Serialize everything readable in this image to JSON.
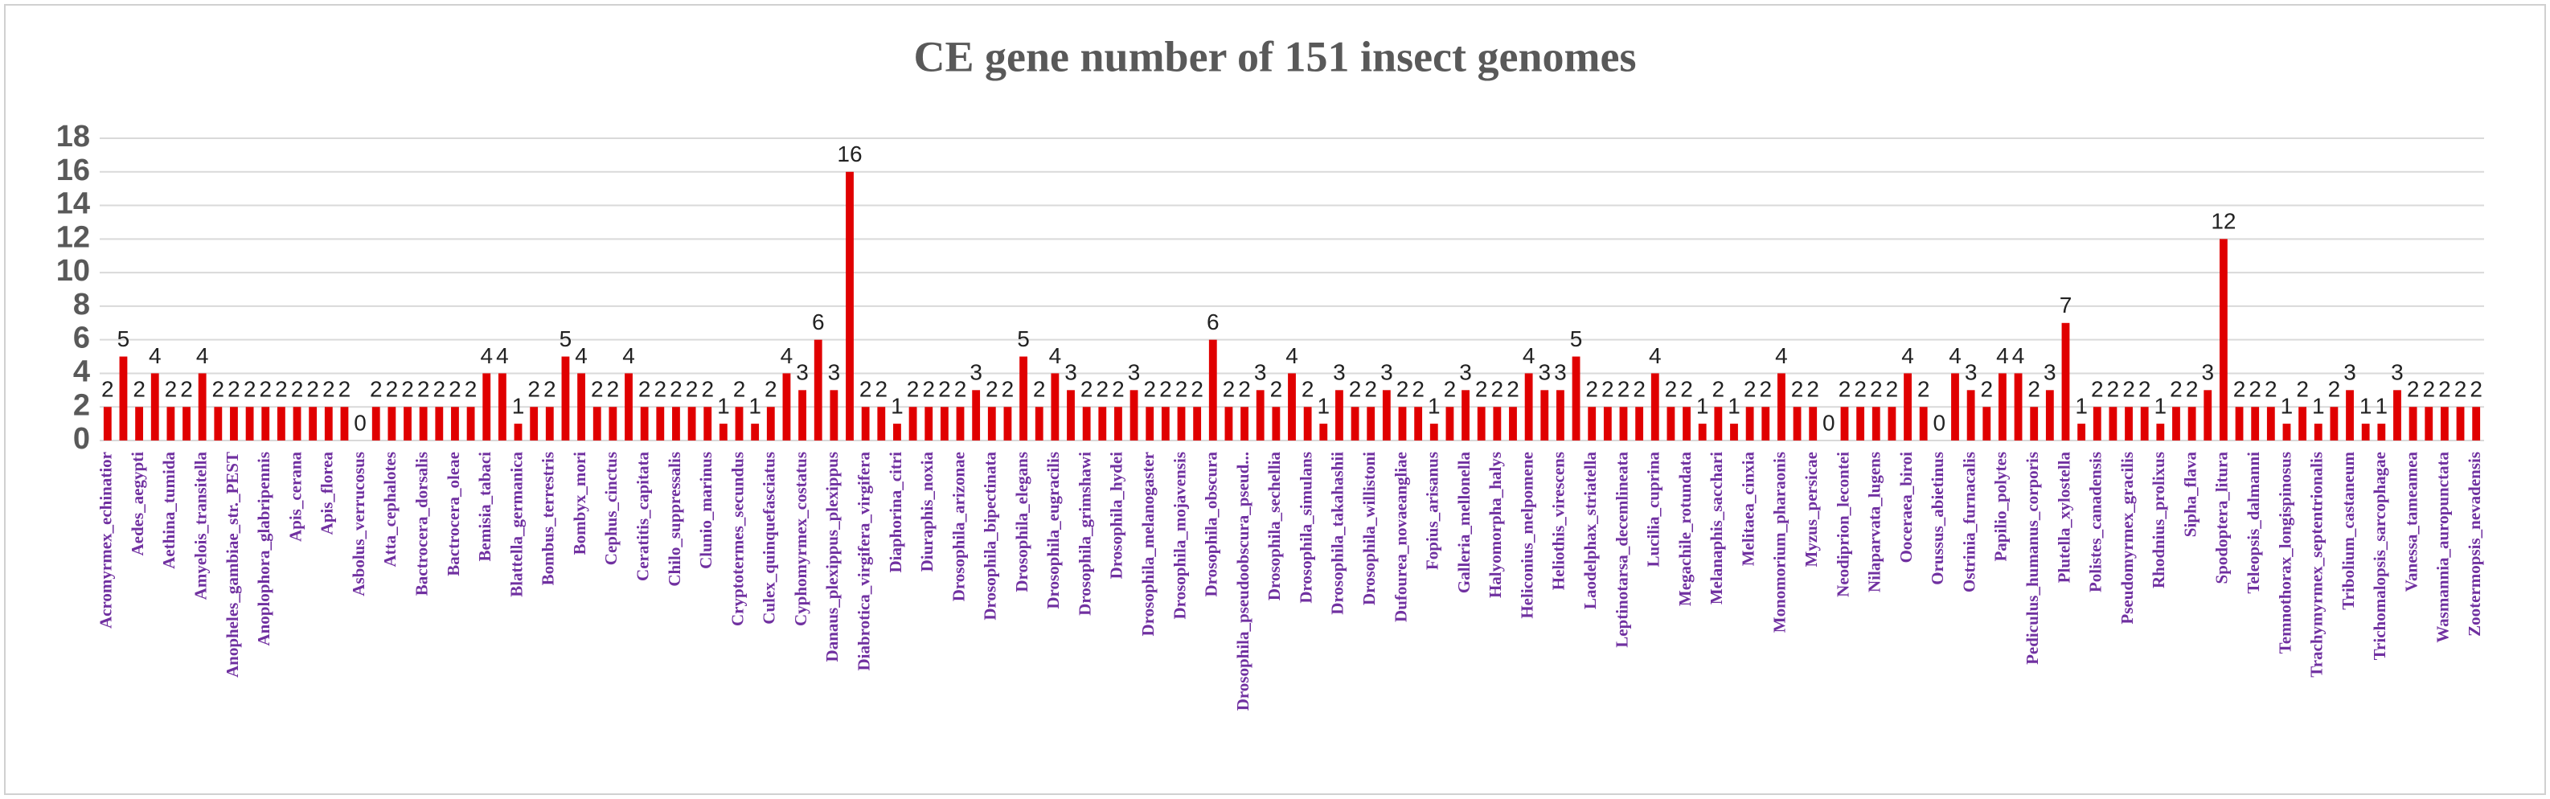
{
  "chart_data": {
    "type": "bar",
    "title": "CE gene number of 151 insect genomes",
    "categories": [
      "Acromyrmex_echinatior",
      null,
      "Aedes_aegypti",
      null,
      "Aethina_tumida",
      null,
      "Amyelois_transitella",
      null,
      "Anopheles_gambiae_str._PEST",
      null,
      "Anoplophora_glabripennis",
      null,
      "Apis_cerana",
      null,
      "Apis_florea",
      null,
      "Asbolus_verrucosus",
      null,
      "Atta_cephalotes",
      null,
      "Bactrocera_dorsalis",
      null,
      "Bactrocera_oleae",
      null,
      "Bemisia_tabaci",
      null,
      "Blattella_germanica",
      null,
      "Bombus_terrestris",
      null,
      "Bombyx_mori",
      null,
      "Cephus_cinctus",
      null,
      "Ceratitis_capitata",
      null,
      "Chilo_suppressalis",
      null,
      "Clunio_marinus",
      null,
      "Cryptotermes_secundus",
      null,
      "Culex_quinquefasciatus",
      null,
      "Cyphomyrmex_costatus",
      null,
      "Danaus_plexippus_plexippus",
      null,
      "Diabrotica_virgifera_virgifera",
      null,
      "Diaphorina_citri",
      null,
      "Diuraphis_noxia",
      null,
      "Drosophila_arizonae",
      null,
      "Drosophila_bipectinata",
      null,
      "Drosophila_elegans",
      null,
      "Drosophila_eugracilis",
      null,
      "Drosophila_grimshawi",
      null,
      "Drosophila_hydei",
      null,
      "Drosophila_melanogaster",
      null,
      "Drosophila_mojavensis",
      null,
      "Drosophila_obscura",
      null,
      "Drosophila_pseudoobscura_pseud...",
      null,
      "Drosophila_sechellia",
      null,
      "Drosophila_simulans",
      null,
      "Drosophila_takahashii",
      null,
      "Drosophila_willistoni",
      null,
      "Dufourea_novaeangliae",
      null,
      "Fopius_arisanus",
      null,
      "Galleria_mellonella",
      null,
      "Halyomorpha_halys",
      null,
      "Heliconius_melpomene",
      null,
      "Heliothis_virescens",
      null,
      "Laodelphax_striatella",
      null,
      "Leptinotarsa_decemlineata",
      null,
      "Lucilia_cuprina",
      null,
      "Megachile_rotundata",
      null,
      "Melanaphis_sacchari",
      null,
      "Melitaea_cinxia",
      null,
      "Monomorium_pharaonis",
      null,
      "Myzus_persicae",
      null,
      "Neodiprion_lecontei",
      null,
      "Nilaparvata_lugens",
      null,
      "Ooceraea_biroi",
      null,
      "Orussus_abietinus",
      null,
      "Ostrinia_furnacalis",
      null,
      "Papilio_polytes",
      null,
      "Pediculus_humanus_corporis",
      null,
      "Plutella_xylostella",
      null,
      "Polistes_canadensis",
      null,
      "Pseudomyrmex_gracilis",
      null,
      "Rhodnius_prolixus",
      null,
      "Sipha_flava",
      null,
      "Spodoptera_litura",
      null,
      "Teleopsis_dalmanni",
      null,
      "Temnothorax_longispinosus",
      null,
      "Trachymyrmex_septentrionalis",
      null,
      "Tribolium_castaneum",
      null,
      "Trichomalopsis_sarcophagae",
      null,
      "Vanessa_tameamea",
      null,
      "Wasmannia_auropunctata",
      null,
      "Zootermopsis_nevadensis"
    ],
    "values": [
      2,
      5,
      2,
      4,
      2,
      2,
      4,
      2,
      2,
      2,
      2,
      2,
      2,
      2,
      2,
      2,
      0,
      2,
      2,
      2,
      2,
      2,
      2,
      2,
      4,
      4,
      1,
      2,
      2,
      5,
      4,
      2,
      2,
      4,
      2,
      2,
      2,
      2,
      2,
      1,
      2,
      1,
      2,
      4,
      3,
      6,
      3,
      16,
      2,
      2,
      1,
      2,
      2,
      2,
      2,
      3,
      2,
      2,
      5,
      2,
      4,
      3,
      2,
      2,
      2,
      3,
      2,
      2,
      2,
      2,
      6,
      2,
      2,
      3,
      2,
      4,
      2,
      1,
      3,
      2,
      2,
      3,
      2,
      2,
      1,
      2,
      3,
      2,
      2,
      2,
      4,
      3,
      3,
      5,
      2,
      2,
      2,
      2,
      4,
      2,
      2,
      1,
      2,
      1,
      2,
      2,
      4,
      2,
      2,
      0,
      2,
      2,
      2,
      2,
      4,
      2,
      0,
      4,
      3,
      2,
      4,
      4,
      2,
      3,
      7,
      1,
      2,
      2,
      2,
      2,
      1,
      2,
      2,
      3,
      12,
      2,
      2,
      2,
      1,
      2,
      1,
      2,
      3,
      1,
      1,
      3,
      2,
      2,
      2,
      2,
      2
    ],
    "color": "#e00000",
    "label_color": "#7030a0",
    "ylim": [
      0,
      18
    ],
    "yticks": [
      0,
      2,
      4,
      6,
      8,
      10,
      12,
      14,
      16,
      18
    ],
    "grid": true
  }
}
